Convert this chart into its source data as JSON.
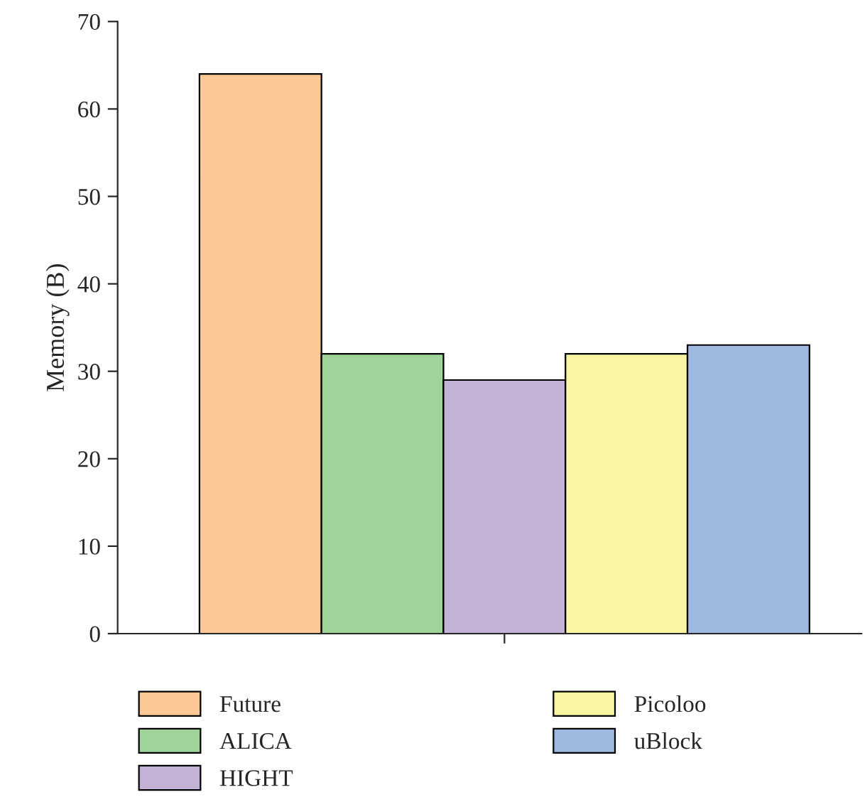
{
  "chart_data": {
    "type": "bar",
    "ylabel": "Memory (B)",
    "categories": [
      null
    ],
    "series": [
      {
        "name": "Future",
        "color": "#fcc895",
        "values": [
          64
        ]
      },
      {
        "name": "ALICA",
        "color": "#9ed39a",
        "values": [
          32
        ]
      },
      {
        "name": "HIGHT",
        "color": "#c3b2d6",
        "values": [
          29
        ]
      },
      {
        "name": "Picoloo",
        "color": "#f8f6a2",
        "values": [
          32
        ]
      },
      {
        "name": "uBlock",
        "color": "#9db9e0",
        "values": [
          33
        ]
      }
    ],
    "ylim": [
      0,
      70
    ],
    "yticks": [
      0,
      10,
      20,
      30,
      40,
      50,
      60,
      70
    ],
    "grid": false,
    "legend": "bottom"
  }
}
